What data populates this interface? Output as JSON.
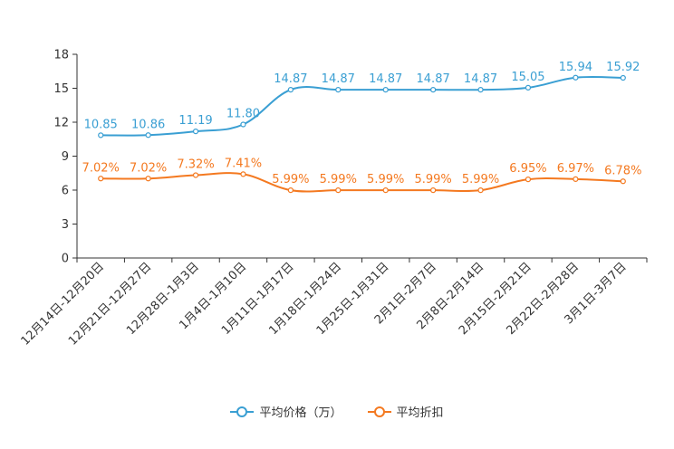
{
  "chart_data": {
    "type": "line",
    "categories": [
      "12月14日-12月20日",
      "12月21日-12月27日",
      "12月28日-1月3日",
      "1月4日-1月10日",
      "1月11日-1月17日",
      "1月18日-1月24日",
      "1月25日-1月31日",
      "2月1日-2月7日",
      "2月8日-2月14日",
      "2月15日-2月21日",
      "2月22日-2月28日",
      "3月1日-3月7日"
    ],
    "ylim": [
      0,
      18
    ],
    "yticks": [
      0,
      3,
      6,
      9,
      12,
      15,
      18
    ],
    "series": [
      {
        "name": "平均价格（万）",
        "color": "#3a9fd3",
        "values": [
          10.85,
          10.86,
          11.19,
          11.8,
          14.87,
          14.87,
          14.87,
          14.87,
          14.87,
          15.05,
          15.94,
          15.92
        ],
        "labels": [
          "10.85",
          "10.86",
          "11.19",
          "11.80",
          "14.87",
          "14.87",
          "14.87",
          "14.87",
          "14.87",
          "15.05",
          "15.94",
          "15.92"
        ]
      },
      {
        "name": "平均折扣",
        "color": "#f47920",
        "values": [
          7.02,
          7.02,
          7.32,
          7.41,
          5.99,
          5.99,
          5.99,
          5.99,
          5.99,
          6.95,
          6.97,
          6.78
        ],
        "labels": [
          "7.02%",
          "7.02%",
          "7.32%",
          "7.41%",
          "5.99%",
          "5.99%",
          "5.99%",
          "5.99%",
          "5.99%",
          "6.95%",
          "6.97%",
          "6.78%"
        ]
      }
    ],
    "legend_position": "bottom-center"
  }
}
